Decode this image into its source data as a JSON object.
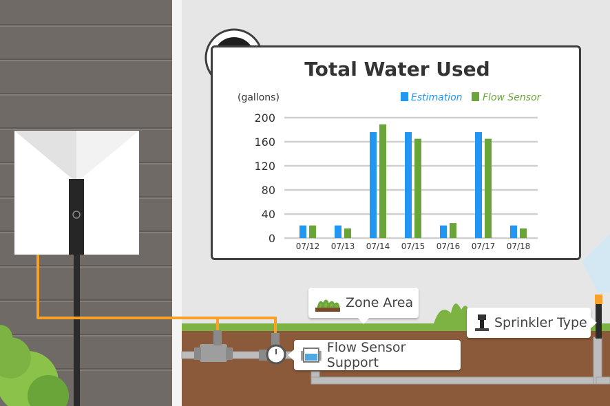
{
  "colors": {
    "estimation": "#2196f3",
    "flow_sensor": "#6aa53a",
    "soil": "#8b5a3a",
    "grass": "#7cb342",
    "wall": "#6f6a66",
    "wire": "#f7a12a"
  },
  "callouts": {
    "zone_area": "Zone Area",
    "sprinkler_type": "Sprinkler Type",
    "flow_sensor_support": "Flow Sensor Support"
  },
  "chart_data": {
    "type": "bar",
    "title": "Total Water Used",
    "ylabel": "(gallons)",
    "ylim": [
      0,
      200
    ],
    "yticks": [
      0,
      40,
      80,
      120,
      160,
      200
    ],
    "grid": true,
    "legend_position": "top-right",
    "categories": [
      "07/12",
      "07/13",
      "07/14",
      "07/15",
      "07/16",
      "07/17",
      "07/18"
    ],
    "series": [
      {
        "name": "Estimation",
        "color": "#2196f3",
        "values": [
          21,
          21,
          176,
          176,
          21,
          176,
          21
        ]
      },
      {
        "name": "Flow Sensor",
        "color": "#6aa53a",
        "values": [
          21,
          16,
          189,
          165,
          25,
          165,
          16
        ]
      }
    ]
  }
}
